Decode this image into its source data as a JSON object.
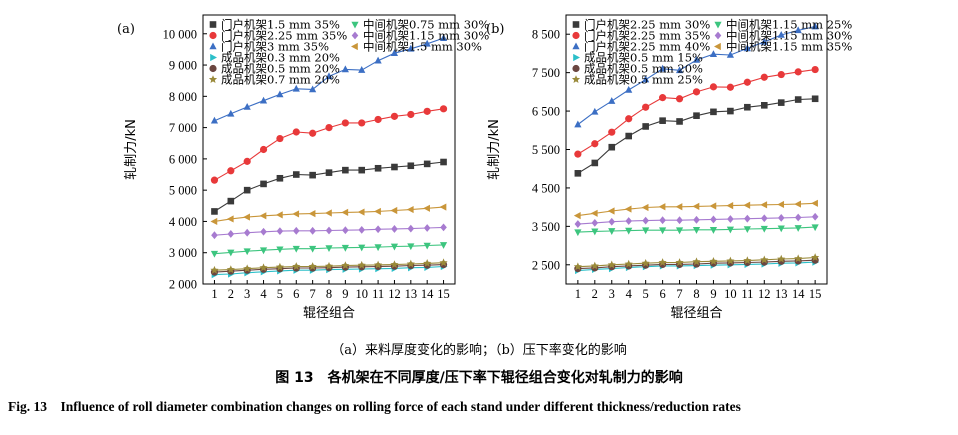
{
  "captions": {
    "sub": "（a）来料厚度变化的影响；（b）压下率变化的影响",
    "cn": "图 13　各机架在不同厚度/压下率下辊径组合变化对轧制力的影响",
    "en": "Fig. 13　Influence of roll diameter combination changes on rolling force of each stand under different thickness/reduction rates"
  },
  "chart_data": [
    {
      "panel": "(a)",
      "type": "line",
      "xlabel": "辊径组合",
      "ylabel": "轧制力/kN",
      "x": [
        1,
        2,
        3,
        4,
        5,
        6,
        7,
        8,
        9,
        10,
        11,
        12,
        13,
        14,
        15
      ],
      "xlim": [
        0.3,
        15.7
      ],
      "ylim": [
        2000,
        10600
      ],
      "yticks": [
        2000,
        3000,
        4000,
        5000,
        6000,
        7000,
        8000,
        9000,
        10000
      ],
      "ytick_labels": [
        "2 000",
        "3 000",
        "4 000",
        "5 000",
        "6 000",
        "7 000",
        "8 000",
        "9 000",
        "10 000"
      ],
      "legend_position": "top-left",
      "series": [
        {
          "name": "门户机架1.5 mm 35%",
          "marker": "square",
          "color": "#3a3a3a",
          "values": [
            4320,
            4650,
            5000,
            5200,
            5380,
            5500,
            5480,
            5560,
            5640,
            5640,
            5700,
            5740,
            5780,
            5840,
            5900
          ]
        },
        {
          "name": "门户机架2.25 mm 35%",
          "marker": "circle",
          "color": "#e8393a",
          "values": [
            5320,
            5620,
            5920,
            6300,
            6650,
            6860,
            6820,
            7000,
            7150,
            7150,
            7260,
            7360,
            7420,
            7520,
            7600
          ]
        },
        {
          "name": "门户机架3 mm 35%",
          "marker": "triangle",
          "color": "#3c6fc4",
          "values": [
            7220,
            7440,
            7660,
            7860,
            8060,
            8240,
            8220,
            8640,
            8860,
            8840,
            9140,
            9380,
            9520,
            9680,
            9860
          ]
        },
        {
          "name": "成品机架0.3 mm 20%",
          "marker": "tri-right",
          "color": "#2bbfc9",
          "values": [
            2300,
            2320,
            2360,
            2390,
            2420,
            2440,
            2440,
            2460,
            2470,
            2480,
            2490,
            2500,
            2520,
            2530,
            2560
          ]
        },
        {
          "name": "成品机架0.5 mm 20%",
          "marker": "hexagon",
          "color": "#6b4640",
          "values": [
            2380,
            2410,
            2440,
            2470,
            2490,
            2510,
            2510,
            2520,
            2540,
            2550,
            2560,
            2570,
            2590,
            2600,
            2620
          ]
        },
        {
          "name": "成品机架0.7 mm 20%",
          "marker": "star",
          "color": "#9a8a3a",
          "values": [
            2440,
            2460,
            2490,
            2520,
            2540,
            2560,
            2560,
            2570,
            2590,
            2600,
            2610,
            2620,
            2640,
            2660,
            2680
          ]
        },
        {
          "name": "中间机架0.75 mm 30%",
          "marker": "tri-down",
          "color": "#3dc57f",
          "values": [
            2970,
            3010,
            3050,
            3080,
            3110,
            3130,
            3130,
            3150,
            3160,
            3170,
            3180,
            3200,
            3210,
            3230,
            3250
          ]
        },
        {
          "name": "中间机架1.15 mm 30%",
          "marker": "diamond",
          "color": "#a77bd0",
          "values": [
            3560,
            3600,
            3640,
            3670,
            3690,
            3700,
            3700,
            3710,
            3720,
            3730,
            3750,
            3760,
            3770,
            3790,
            3810
          ]
        },
        {
          "name": "中间机架1.5 mm 30%",
          "marker": "tri-left",
          "color": "#c9963a",
          "values": [
            4000,
            4080,
            4140,
            4180,
            4210,
            4240,
            4250,
            4270,
            4290,
            4300,
            4320,
            4350,
            4380,
            4420,
            4460
          ]
        }
      ]
    },
    {
      "panel": "(b)",
      "type": "line",
      "xlabel": "辊径组合",
      "ylabel": "轧制力/kN",
      "x": [
        1,
        2,
        3,
        4,
        5,
        6,
        7,
        8,
        9,
        10,
        11,
        12,
        13,
        14,
        15
      ],
      "xlim": [
        0.3,
        15.7
      ],
      "ylim": [
        2000,
        9000
      ],
      "yticks": [
        2500,
        3500,
        4500,
        5500,
        6500,
        7500,
        8500
      ],
      "ytick_labels": [
        "2 500",
        "3 500",
        "4 500",
        "5 500",
        "6 500",
        "7 500",
        "8 500"
      ],
      "legend_position": "top-left",
      "series": [
        {
          "name": "门户机架2.25 mm 30%",
          "marker": "square",
          "color": "#3a3a3a",
          "values": [
            4880,
            5150,
            5560,
            5850,
            6100,
            6250,
            6230,
            6380,
            6480,
            6500,
            6600,
            6650,
            6720,
            6800,
            6820
          ]
        },
        {
          "name": "门户机架2.25 mm 35%",
          "marker": "circle",
          "color": "#e8393a",
          "values": [
            5380,
            5650,
            5950,
            6300,
            6600,
            6850,
            6820,
            7000,
            7130,
            7120,
            7250,
            7380,
            7450,
            7520,
            7580
          ]
        },
        {
          "name": "门户机架2.25 mm 40%",
          "marker": "triangle",
          "color": "#3c6fc4",
          "values": [
            6150,
            6480,
            6760,
            7050,
            7320,
            7600,
            7560,
            7830,
            7980,
            7960,
            8130,
            8300,
            8480,
            8600,
            8700
          ]
        },
        {
          "name": "成品机架0.5 mm 15%",
          "marker": "tri-right",
          "color": "#2bbfc9",
          "values": [
            2350,
            2380,
            2400,
            2430,
            2450,
            2470,
            2470,
            2480,
            2490,
            2500,
            2510,
            2520,
            2540,
            2550,
            2570
          ]
        },
        {
          "name": "成品机架0.5 mm 20%",
          "marker": "hexagon",
          "color": "#6b4640",
          "values": [
            2400,
            2420,
            2450,
            2470,
            2490,
            2510,
            2510,
            2520,
            2540,
            2550,
            2560,
            2570,
            2590,
            2600,
            2620
          ]
        },
        {
          "name": "成品机架0.5 mm 25%",
          "marker": "star",
          "color": "#9a8a3a",
          "values": [
            2450,
            2470,
            2500,
            2520,
            2540,
            2560,
            2560,
            2580,
            2590,
            2600,
            2610,
            2630,
            2650,
            2660,
            2690
          ]
        },
        {
          "name": "中间机架1.15 mm 25%",
          "marker": "tri-down",
          "color": "#3dc57f",
          "values": [
            3350,
            3370,
            3380,
            3390,
            3400,
            3400,
            3400,
            3410,
            3410,
            3420,
            3430,
            3440,
            3450,
            3460,
            3480
          ]
        },
        {
          "name": "中间机架1.15 mm 30%",
          "marker": "diamond",
          "color": "#a77bd0",
          "values": [
            3560,
            3590,
            3620,
            3640,
            3650,
            3660,
            3660,
            3670,
            3680,
            3690,
            3700,
            3710,
            3720,
            3730,
            3750
          ]
        },
        {
          "name": "中间机架1.15 mm 35%",
          "marker": "tri-left",
          "color": "#c9963a",
          "values": [
            3780,
            3840,
            3900,
            3950,
            3990,
            4010,
            4010,
            4020,
            4030,
            4040,
            4050,
            4060,
            4070,
            4080,
            4100
          ]
        }
      ]
    }
  ]
}
